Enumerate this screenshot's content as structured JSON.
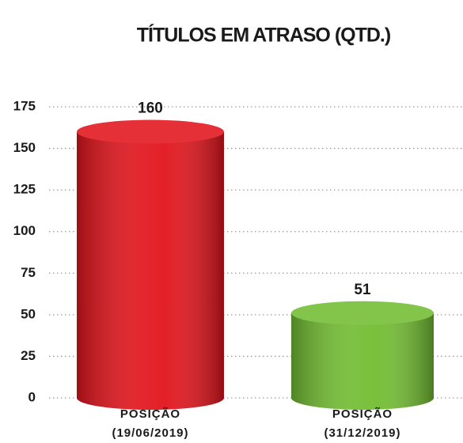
{
  "chart_data": {
    "type": "bar",
    "title": "TÍTULOS EM ATRASO (QTD.)",
    "categories": [
      "POSIÇÃO (19/06/2019)",
      "POSIÇÃO (31/12/2019)"
    ],
    "values": [
      160,
      51
    ],
    "colors": [
      "#e2141c",
      "#72bd32"
    ],
    "ylim": [
      0,
      175
    ],
    "yticks": [
      0,
      25,
      50,
      75,
      100,
      125,
      150,
      175
    ],
    "grid": true
  }
}
